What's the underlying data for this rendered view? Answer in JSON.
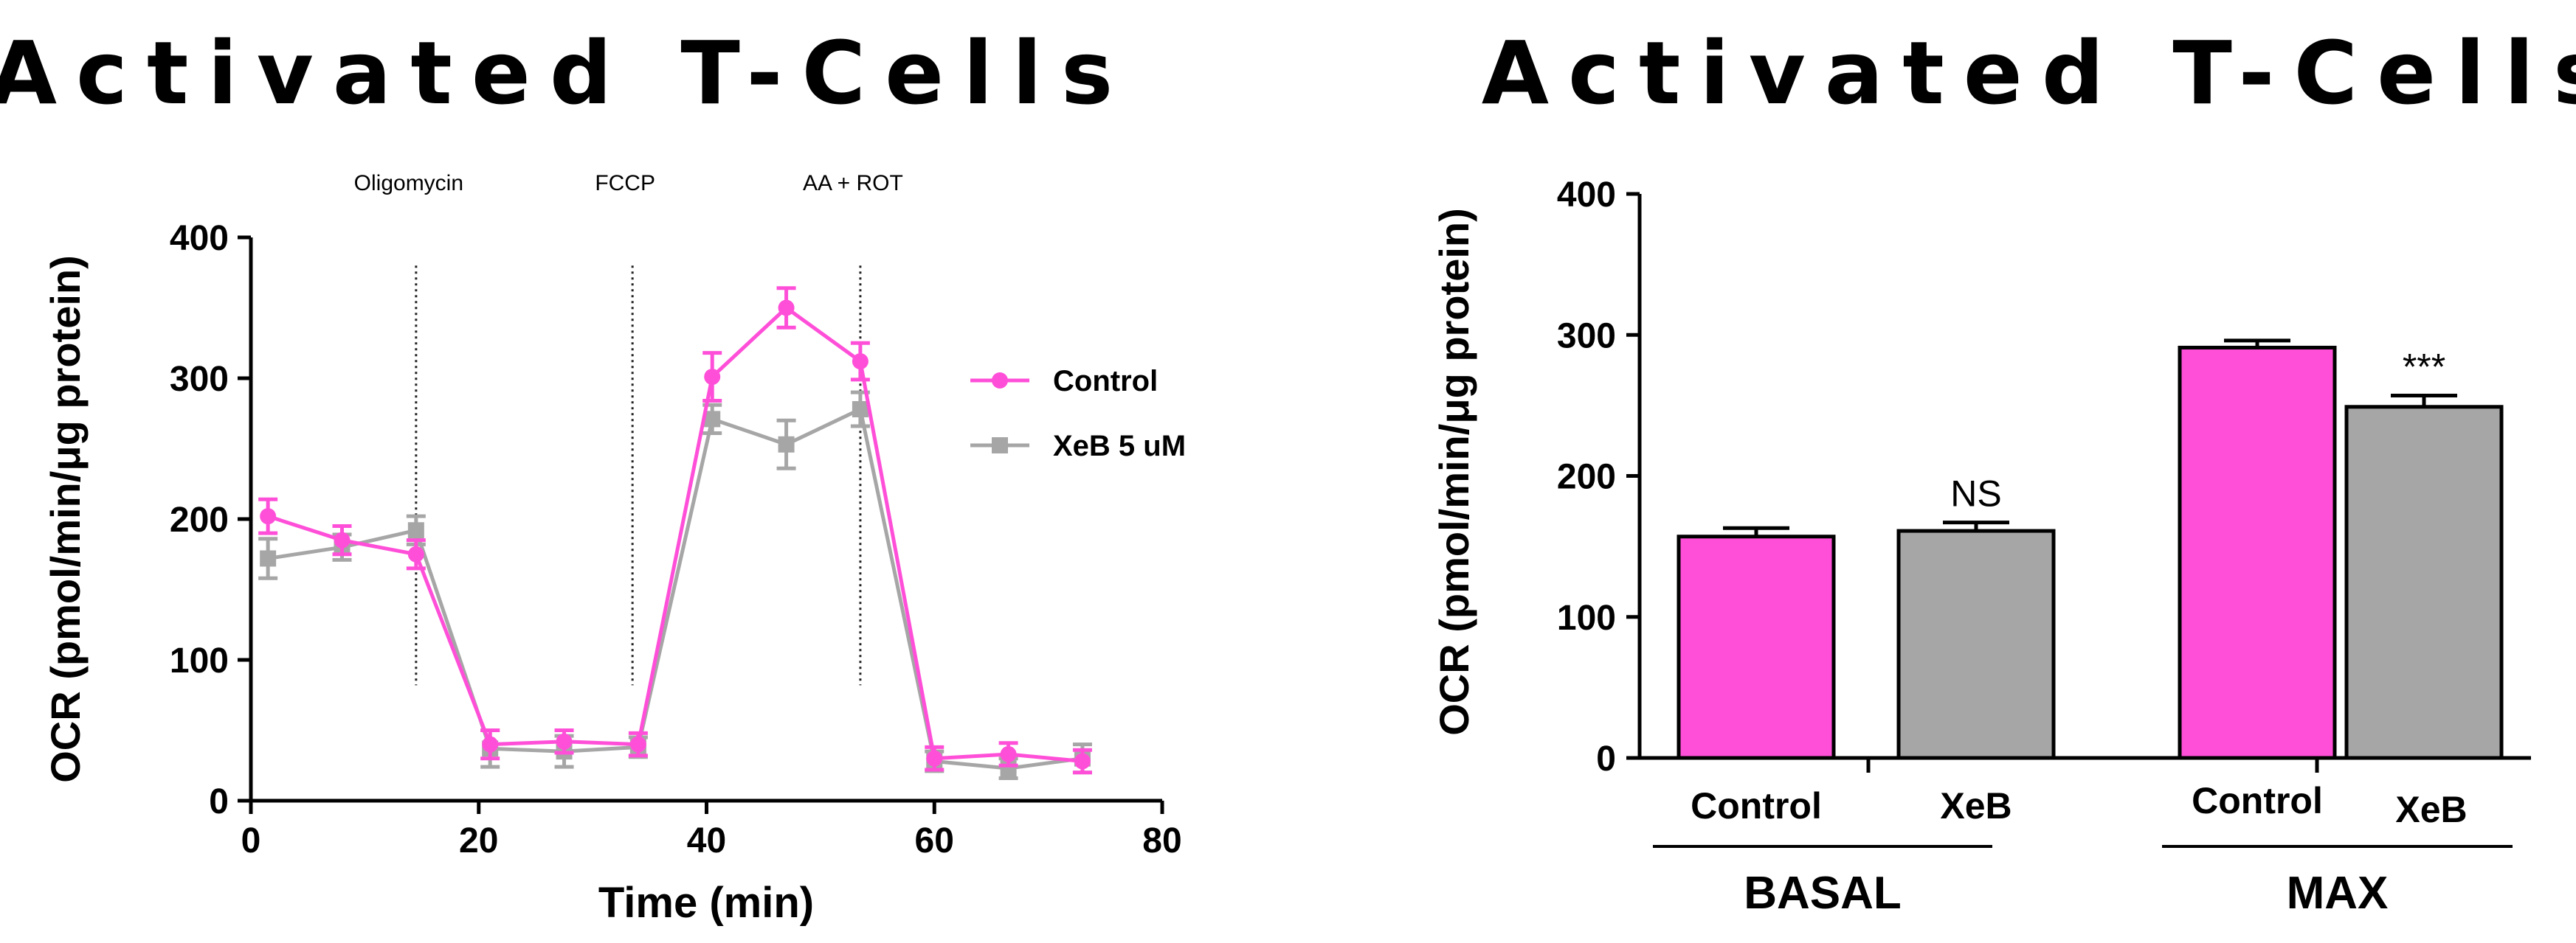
{
  "chart_data": [
    {
      "type": "line",
      "title": "Activated T-Cells",
      "xlabel": "Time (min)",
      "ylabel": "OCR (pmol/min/μg protein)",
      "xlim": [
        0,
        80
      ],
      "ylim": [
        0,
        400
      ],
      "xticks": [
        0,
        20,
        40,
        60,
        80
      ],
      "yticks": [
        0,
        100,
        200,
        300,
        400
      ],
      "annotations": [
        {
          "label": "Oligomycin",
          "x": 14.5
        },
        {
          "label": "FCCP",
          "x": 33.5
        },
        {
          "label": "AA + ROT",
          "x": 53.5
        }
      ],
      "series": [
        {
          "name": "Control",
          "color": "#ff4fd8",
          "marker": "circle",
          "x": [
            1.5,
            8,
            14.5,
            21,
            27.5,
            34,
            40.5,
            47,
            53.5,
            60,
            66.5,
            73
          ],
          "y": [
            202,
            185,
            175,
            40,
            42,
            40,
            301,
            350,
            312,
            30,
            33,
            28
          ],
          "err": [
            12,
            10,
            10,
            10,
            8,
            8,
            17,
            14,
            13,
            8,
            8,
            8
          ]
        },
        {
          "name": "XeB 5 uM",
          "color": "#a6a6a6",
          "marker": "square",
          "x": [
            1.5,
            8,
            14.5,
            21,
            27.5,
            34,
            40.5,
            47,
            53.5,
            60,
            66.5,
            73
          ],
          "y": [
            172,
            180,
            192,
            37,
            35,
            38,
            271,
            253,
            278,
            28,
            23,
            30
          ],
          "err": [
            14,
            9,
            10,
            13,
            11,
            7,
            10,
            17,
            12,
            7,
            7,
            10
          ]
        }
      ]
    },
    {
      "type": "bar",
      "title": "Activated T-Cells",
      "ylabel": "OCR (pmol/min/μg protein)",
      "ylim": [
        0,
        400
      ],
      "yticks": [
        0,
        100,
        200,
        300,
        400
      ],
      "groups": [
        "BASAL",
        "MAX"
      ],
      "categories": [
        "Control",
        "XeB",
        "Control",
        "XeB"
      ],
      "values": [
        157,
        161,
        291,
        249
      ],
      "errors": [
        6,
        6,
        5,
        8
      ],
      "colors": [
        "#ff4fd8",
        "#a6a6a6",
        "#ff4fd8",
        "#a6a6a6"
      ],
      "significance": [
        "",
        "NS",
        "",
        "***"
      ]
    }
  ]
}
